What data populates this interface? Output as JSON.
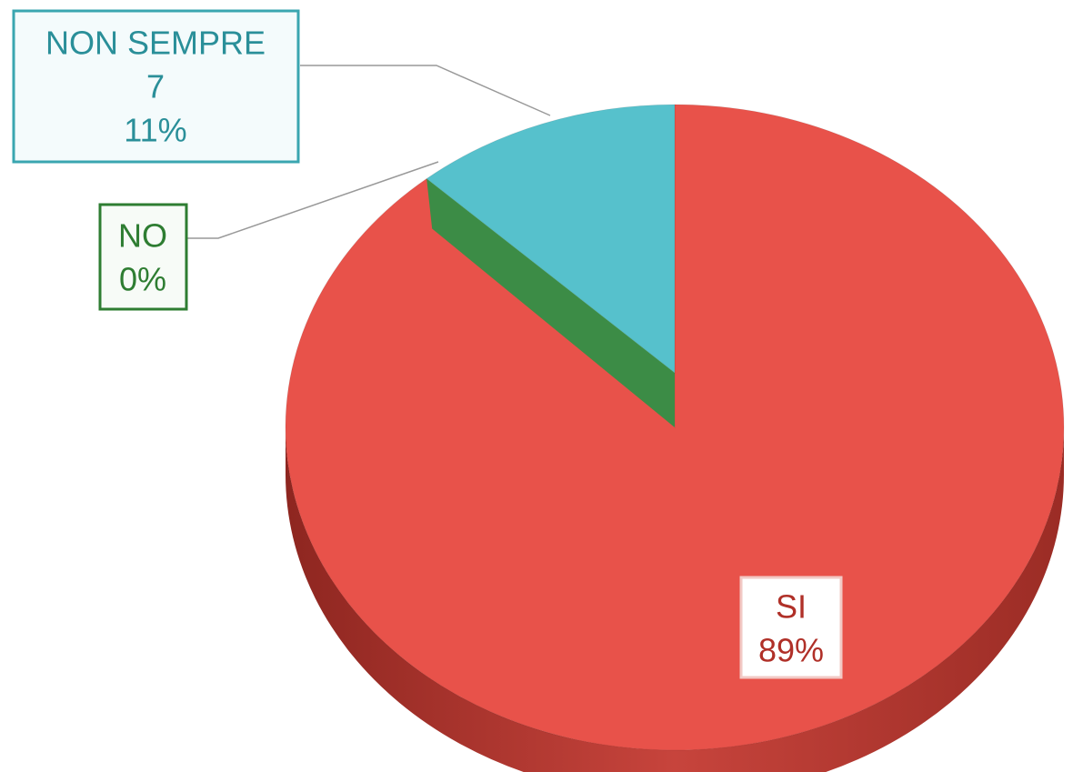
{
  "chart_data": {
    "type": "pie",
    "categories": [
      "SI",
      "NO",
      "NON SEMPRE"
    ],
    "values": [
      89,
      0,
      11
    ],
    "value_labels": [
      "89%",
      "0%",
      "11%"
    ],
    "counts": [
      null,
      null,
      7
    ],
    "colors": [
      "#e8524a",
      "#3c8c46",
      "#56c1cc"
    ]
  }
}
